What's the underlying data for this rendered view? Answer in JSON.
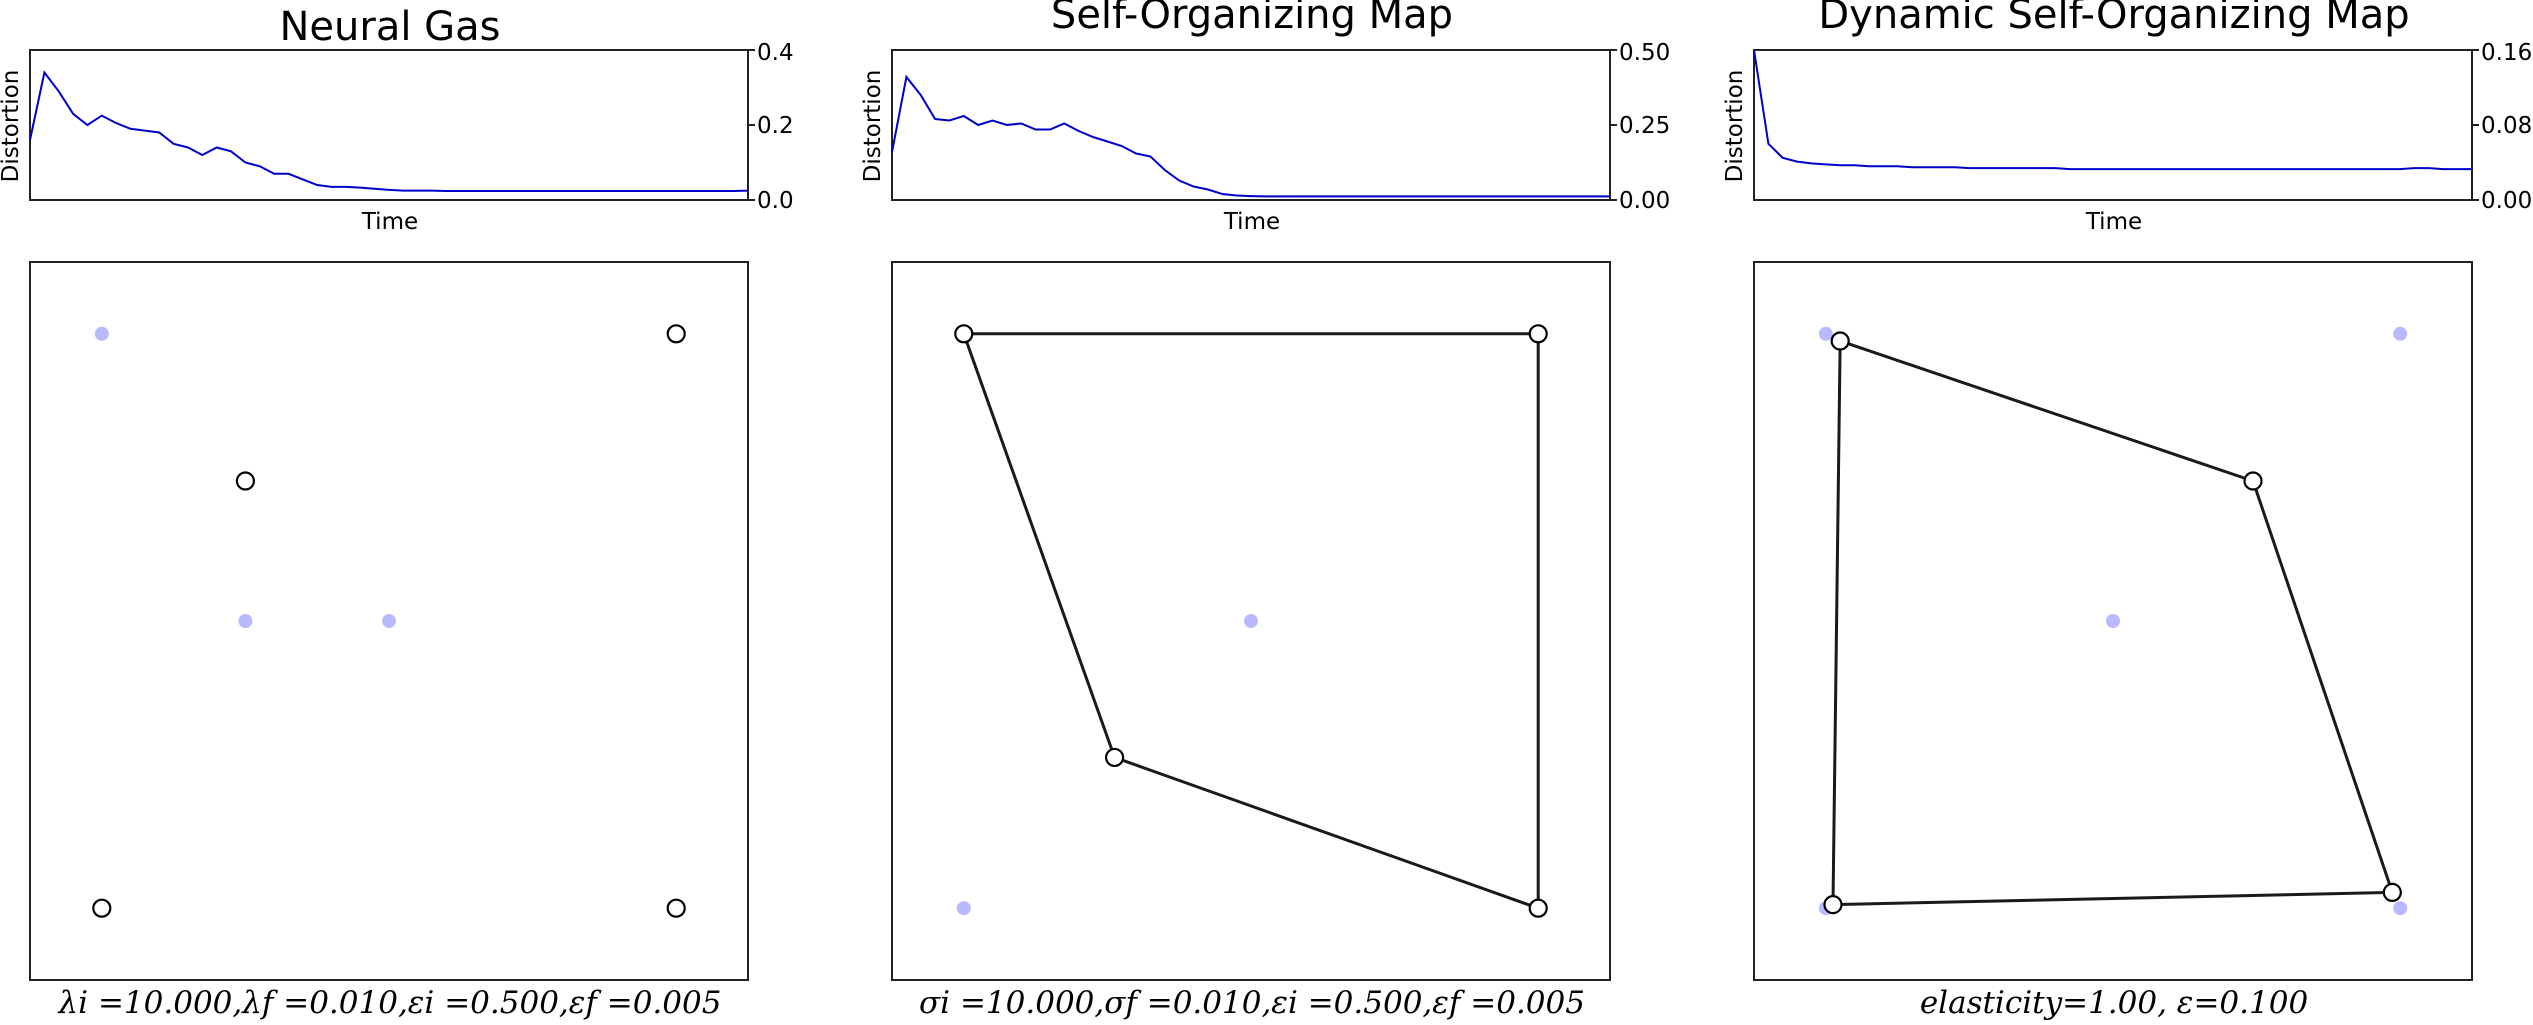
{
  "chart_data": [
    {
      "type": "line",
      "title": "Neural Gas",
      "xlabel": "Time",
      "ylabel": "Distortion",
      "ylim": [
        0,
        0.4
      ],
      "yticks": [
        "0.0",
        "0.2",
        "0.4"
      ],
      "y_axis_side": "right",
      "caption": "λi =10.000,λf =0.010,εi =0.500,εf =0.005",
      "distortion": [
        0.16,
        0.34,
        0.29,
        0.23,
        0.2,
        0.225,
        0.205,
        0.19,
        0.185,
        0.18,
        0.15,
        0.14,
        0.12,
        0.14,
        0.13,
        0.1,
        0.09,
        0.07,
        0.07,
        0.055,
        0.04,
        0.035,
        0.035,
        0.033,
        0.03,
        0.027,
        0.025,
        0.025,
        0.025,
        0.024,
        0.024,
        0.024,
        0.024,
        0.024,
        0.024,
        0.024,
        0.024,
        0.024,
        0.024,
        0.024,
        0.024,
        0.024,
        0.024,
        0.024,
        0.024,
        0.024,
        0.024,
        0.024,
        0.024,
        0.024,
        0.025
      ],
      "samples": [
        [
          0.1,
          0.9
        ],
        [
          0.9,
          0.9
        ],
        [
          0.3,
          0.5
        ],
        [
          0.9,
          0.1
        ],
        [
          0.5,
          0.5
        ],
        [
          0.1,
          0.1
        ]
      ],
      "nodes": [
        [
          0.9,
          0.9
        ],
        [
          0.3,
          0.695
        ],
        [
          0.1,
          0.1
        ],
        [
          0.9,
          0.1
        ]
      ],
      "edges": []
    },
    {
      "type": "line",
      "title": "Self-Organizing Map",
      "xlabel": "Time",
      "ylabel": "Distortion",
      "ylim": [
        0,
        0.5
      ],
      "yticks": [
        "0.00",
        "0.25",
        "0.50"
      ],
      "y_axis_side": "right",
      "caption": "σi =10.000,σf =0.010,εi =0.500,εf =0.005",
      "distortion": [
        0.16,
        0.41,
        0.35,
        0.27,
        0.265,
        0.28,
        0.25,
        0.265,
        0.25,
        0.255,
        0.235,
        0.235,
        0.255,
        0.23,
        0.21,
        0.195,
        0.18,
        0.155,
        0.145,
        0.1,
        0.065,
        0.045,
        0.035,
        0.02,
        0.015,
        0.013,
        0.012,
        0.012,
        0.012,
        0.012,
        0.012,
        0.012,
        0.012,
        0.012,
        0.012,
        0.012,
        0.012,
        0.012,
        0.012,
        0.012,
        0.012,
        0.012,
        0.012,
        0.012,
        0.012,
        0.012,
        0.012,
        0.012,
        0.012,
        0.012,
        0.012
      ],
      "samples": [
        [
          0.1,
          0.9
        ],
        [
          0.9,
          0.9
        ],
        [
          0.5,
          0.5
        ],
        [
          0.1,
          0.1
        ],
        [
          0.9,
          0.1
        ]
      ],
      "nodes": [
        [
          0.1,
          0.9
        ],
        [
          0.9,
          0.9
        ],
        [
          0.31,
          0.31
        ],
        [
          0.9,
          0.1
        ]
      ],
      "edges": [
        [
          0,
          1
        ],
        [
          1,
          3
        ],
        [
          3,
          2
        ],
        [
          2,
          0
        ]
      ]
    },
    {
      "type": "line",
      "title": "Dynamic Self-Organizing Map",
      "xlabel": "Time",
      "ylabel": "Distortion",
      "ylim": [
        0,
        0.16
      ],
      "yticks": [
        "0.00",
        "0.08",
        "0.16"
      ],
      "y_axis_side": "right",
      "caption": "elasticity=1.00, ε=0.100",
      "distortion": [
        0.16,
        0.06,
        0.045,
        0.041,
        0.039,
        0.038,
        0.037,
        0.037,
        0.036,
        0.036,
        0.036,
        0.035,
        0.035,
        0.035,
        0.035,
        0.034,
        0.034,
        0.034,
        0.034,
        0.034,
        0.034,
        0.034,
        0.033,
        0.033,
        0.033,
        0.033,
        0.033,
        0.033,
        0.033,
        0.033,
        0.033,
        0.033,
        0.033,
        0.033,
        0.033,
        0.033,
        0.033,
        0.033,
        0.033,
        0.033,
        0.033,
        0.033,
        0.033,
        0.033,
        0.033,
        0.033,
        0.034,
        0.034,
        0.033,
        0.033,
        0.033
      ],
      "samples": [
        [
          0.1,
          0.9
        ],
        [
          0.9,
          0.9
        ],
        [
          0.5,
          0.5
        ],
        [
          0.1,
          0.1
        ],
        [
          0.9,
          0.1
        ]
      ],
      "nodes": [
        [
          0.12,
          0.89
        ],
        [
          0.695,
          0.695
        ],
        [
          0.11,
          0.105
        ],
        [
          0.889,
          0.122
        ]
      ],
      "edges": [
        [
          0,
          1
        ],
        [
          1,
          3
        ],
        [
          3,
          2
        ],
        [
          2,
          0
        ]
      ]
    }
  ]
}
